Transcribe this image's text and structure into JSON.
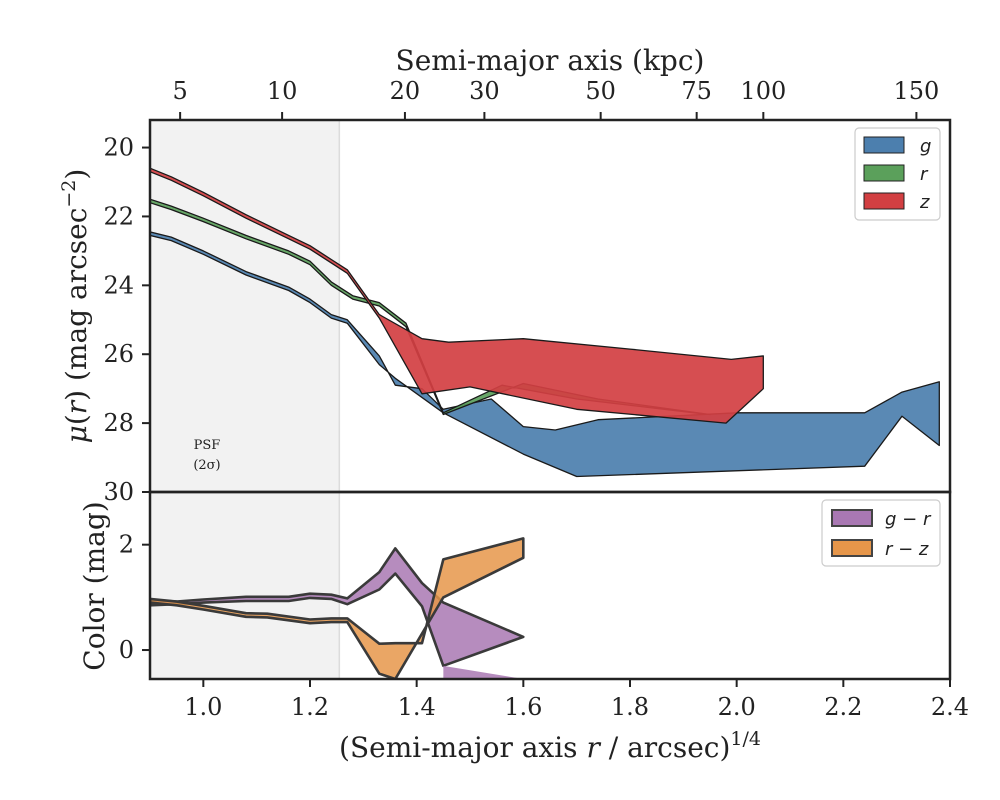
{
  "chart_data": [
    {
      "type": "area",
      "panel": "surface-brightness",
      "ylabel": "μ(r) (mag arcsec⁻²)",
      "ylabel_html": "",
      "ylim": [
        30,
        19.2
      ],
      "xlim": [
        0.9,
        2.4
      ],
      "y_ticks": [
        "20",
        "22",
        "24",
        "26",
        "28",
        "30"
      ],
      "y_tick_values": [
        20,
        22,
        24,
        26,
        28,
        30
      ],
      "top_axis": {
        "label": "Semi-major axis (kpc)",
        "ticks": [
          "5",
          "10",
          "20",
          "30",
          "50",
          "75",
          "100",
          "150"
        ],
        "tick_x_values": [
          0.9565,
          1.1477,
          1.378,
          1.527,
          1.745,
          1.925,
          2.05,
          2.337
        ]
      },
      "psf_band": {
        "x_range": [
          0.9,
          1.255
        ],
        "label_line1": "PSF",
        "label_line2": "(2σ)"
      },
      "legend": {
        "placement": "top-right"
      },
      "series": [
        {
          "name": "g",
          "color": "#4c7fae",
          "upper": [
            [
              0.9,
              22.45
            ],
            [
              0.94,
              22.6
            ],
            [
              1.0,
              23.0
            ],
            [
              1.08,
              23.6
            ],
            [
              1.16,
              24.05
            ],
            [
              1.2,
              24.4
            ],
            [
              1.24,
              24.85
            ],
            [
              1.27,
              25.0
            ],
            [
              1.33,
              26.05
            ],
            [
              1.36,
              26.9
            ],
            [
              1.41,
              27.0
            ],
            [
              1.45,
              27.6
            ],
            [
              1.54,
              27.3
            ],
            [
              1.6,
              28.1
            ],
            [
              1.66,
              28.2
            ],
            [
              1.74,
              27.9
            ],
            [
              2.0,
              27.7
            ],
            [
              2.24,
              27.7
            ],
            [
              2.31,
              27.1
            ],
            [
              2.38,
              26.8
            ]
          ],
          "lower": [
            [
              0.9,
              22.55
            ],
            [
              0.94,
              22.7
            ],
            [
              1.0,
              23.1
            ],
            [
              1.08,
              23.7
            ],
            [
              1.16,
              24.15
            ],
            [
              1.2,
              24.5
            ],
            [
              1.24,
              24.95
            ],
            [
              1.27,
              25.1
            ],
            [
              1.33,
              26.3
            ],
            [
              1.36,
              26.7
            ],
            [
              1.45,
              27.7
            ],
            [
              1.6,
              28.9
            ],
            [
              1.7,
              29.55
            ],
            [
              2.24,
              29.25
            ],
            [
              2.31,
              27.8
            ],
            [
              2.38,
              28.65
            ]
          ]
        },
        {
          "name": "r",
          "color": "#5ba05b",
          "upper": [
            [
              0.9,
              21.5
            ],
            [
              0.94,
              21.7
            ],
            [
              1.0,
              22.05
            ],
            [
              1.08,
              22.55
            ],
            [
              1.16,
              23.0
            ],
            [
              1.2,
              23.3
            ],
            [
              1.24,
              23.9
            ],
            [
              1.28,
              24.3
            ],
            [
              1.33,
              24.5
            ],
            [
              1.38,
              25.1
            ],
            [
              1.45,
              27.7
            ],
            [
              1.56,
              26.9
            ],
            [
              1.7,
              27.3
            ],
            [
              1.92,
              27.7
            ]
          ],
          "lower": [
            [
              0.9,
              21.6
            ],
            [
              0.94,
              21.8
            ],
            [
              1.0,
              22.15
            ],
            [
              1.08,
              22.65
            ],
            [
              1.16,
              23.1
            ],
            [
              1.2,
              23.4
            ],
            [
              1.24,
              24.0
            ],
            [
              1.28,
              24.4
            ],
            [
              1.33,
              24.6
            ],
            [
              1.38,
              25.2
            ],
            [
              1.45,
              27.75
            ],
            [
              1.6,
              26.85
            ],
            [
              1.74,
              27.3
            ],
            [
              1.95,
              27.75
            ]
          ]
        },
        {
          "name": "z",
          "color": "#d23f42",
          "upper": [
            [
              0.9,
              20.6
            ],
            [
              0.94,
              20.85
            ],
            [
              1.0,
              21.3
            ],
            [
              1.08,
              21.95
            ],
            [
              1.16,
              22.55
            ],
            [
              1.2,
              22.85
            ],
            [
              1.24,
              23.25
            ],
            [
              1.27,
              23.55
            ],
            [
              1.33,
              24.85
            ],
            [
              1.41,
              25.55
            ],
            [
              1.46,
              25.65
            ],
            [
              1.6,
              25.55
            ],
            [
              1.8,
              25.85
            ],
            [
              1.99,
              26.15
            ],
            [
              2.05,
              26.05
            ]
          ],
          "lower": [
            [
              0.9,
              20.7
            ],
            [
              0.94,
              20.95
            ],
            [
              1.0,
              21.4
            ],
            [
              1.08,
              22.05
            ],
            [
              1.16,
              22.65
            ],
            [
              1.2,
              22.95
            ],
            [
              1.24,
              23.35
            ],
            [
              1.27,
              23.65
            ],
            [
              1.33,
              24.95
            ],
            [
              1.41,
              27.15
            ],
            [
              1.5,
              26.95
            ],
            [
              1.7,
              27.6
            ],
            [
              1.98,
              28.0
            ],
            [
              2.05,
              27.0
            ]
          ]
        }
      ]
    },
    {
      "type": "area",
      "panel": "color",
      "xlabel": "(Semi-major axis r / arcsec)^1/4",
      "xlabel_parts": [
        "(Semi-major axis ",
        "r",
        " / arcsec)",
        "1/4"
      ],
      "ylabel": "Color (mag)",
      "ylim": [
        -0.55,
        3.0
      ],
      "xlim": [
        0.9,
        2.4
      ],
      "x_ticks": [
        "1.0",
        "1.2",
        "1.4",
        "1.6",
        "1.8",
        "2.0",
        "2.2",
        "2.4"
      ],
      "x_tick_values": [
        1.0,
        1.2,
        1.4,
        1.6,
        1.8,
        2.0,
        2.2,
        2.4
      ],
      "y_ticks": [
        "0",
        "2"
      ],
      "y_tick_values": [
        0,
        2
      ],
      "legend": {
        "placement": "top-right"
      },
      "series": [
        {
          "name": "g − r",
          "color": "#a978b3",
          "upper": [
            [
              0.9,
              0.95
            ],
            [
              0.95,
              0.92
            ],
            [
              1.0,
              0.96
            ],
            [
              1.08,
              1.01
            ],
            [
              1.16,
              1.01
            ],
            [
              1.2,
              1.07
            ],
            [
              1.24,
              1.05
            ],
            [
              1.27,
              0.98
            ],
            [
              1.33,
              1.48
            ],
            [
              1.36,
              1.93
            ],
            [
              1.41,
              1.27
            ],
            [
              1.45,
              0.9
            ]
          ],
          "lower": [
            [
              0.9,
              0.85
            ],
            [
              0.95,
              0.87
            ],
            [
              1.0,
              0.9
            ],
            [
              1.08,
              0.93
            ],
            [
              1.16,
              0.93
            ],
            [
              1.2,
              0.99
            ],
            [
              1.24,
              0.97
            ],
            [
              1.27,
              0.87
            ],
            [
              1.33,
              1.15
            ],
            [
              1.36,
              1.45
            ],
            [
              1.41,
              0.83
            ],
            [
              1.45,
              -0.3
            ],
            [
              1.6,
              0.25
            ]
          ],
          "extra_band": {
            "x": [
              1.45,
              1.6
            ],
            "top": [
              -0.3,
              -0.55
            ],
            "bottom": [
              -0.55,
              -0.55
            ]
          }
        },
        {
          "name": "r − z",
          "color": "#e6964a",
          "upper": [
            [
              0.9,
              0.97
            ],
            [
              0.95,
              0.92
            ],
            [
              1.0,
              0.84
            ],
            [
              1.08,
              0.7
            ],
            [
              1.12,
              0.69
            ],
            [
              1.2,
              0.58
            ],
            [
              1.24,
              0.6
            ],
            [
              1.27,
              0.6
            ],
            [
              1.33,
              0.12
            ],
            [
              1.36,
              0.13
            ],
            [
              1.41,
              0.13
            ],
            [
              1.45,
              1.72
            ],
            [
              1.6,
              2.12
            ]
          ],
          "lower": [
            [
              0.9,
              0.9
            ],
            [
              0.95,
              0.85
            ],
            [
              1.0,
              0.77
            ],
            [
              1.08,
              0.63
            ],
            [
              1.12,
              0.62
            ],
            [
              1.2,
              0.51
            ],
            [
              1.24,
              0.53
            ],
            [
              1.27,
              0.53
            ],
            [
              1.33,
              -0.45
            ],
            [
              1.36,
              -0.55
            ],
            [
              1.45,
              1.0
            ],
            [
              1.6,
              1.75
            ]
          ]
        }
      ]
    }
  ]
}
